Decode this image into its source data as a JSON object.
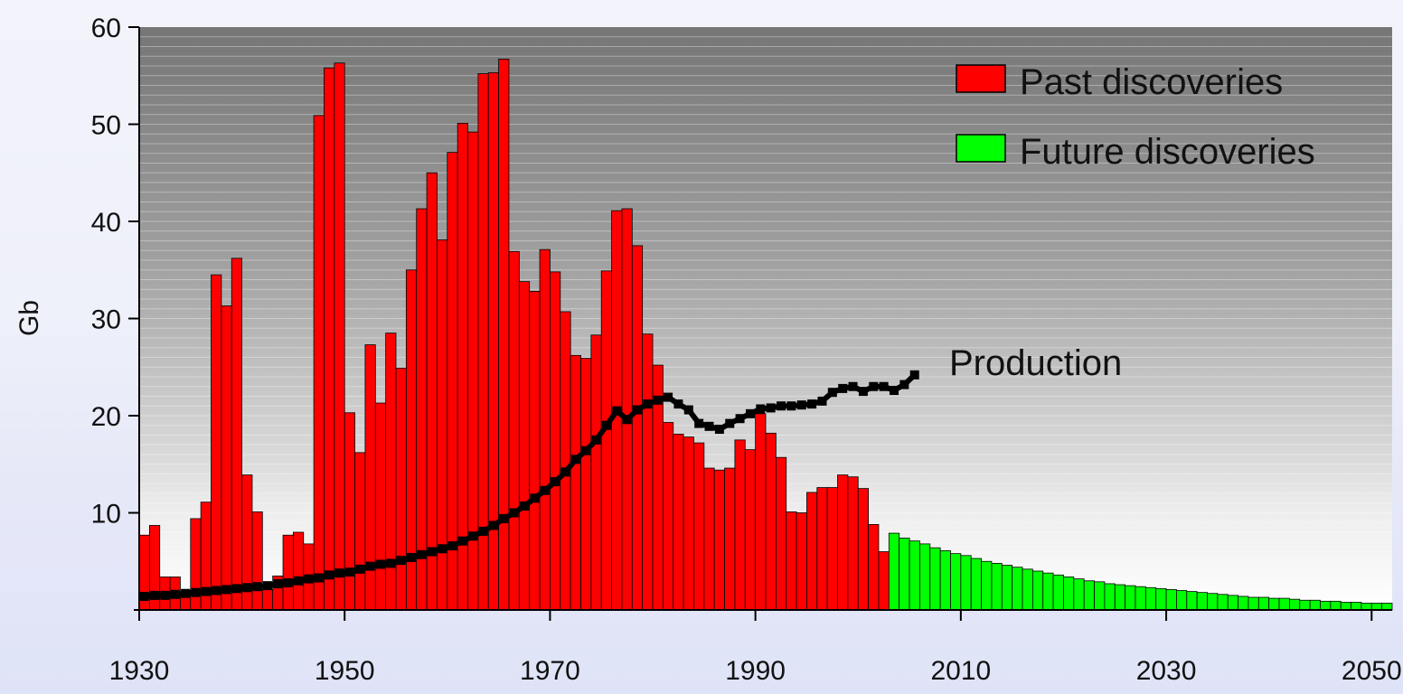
{
  "chart_data": {
    "type": "bar",
    "title": "",
    "xlabel": "",
    "ylabel": "Gb",
    "xlim": [
      1930,
      2052
    ],
    "ylim": [
      0,
      60
    ],
    "x_ticks": [
      1930,
      1950,
      1970,
      1990,
      2010,
      2030,
      2050
    ],
    "y_ticks": [
      10,
      20,
      30,
      40,
      50,
      60
    ],
    "grid": "horizontal lines",
    "legend_position": "top-right",
    "colors": {
      "past": "#ff0000",
      "future": "#00ff00",
      "production": "#000000",
      "plot_background_top": "#7a7a7a",
      "plot_background_bottom": "#ffffff"
    },
    "series": [
      {
        "name": "Past discoveries",
        "type": "bar",
        "x": [
          1930,
          1931,
          1932,
          1933,
          1934,
          1935,
          1936,
          1937,
          1938,
          1939,
          1940,
          1941,
          1942,
          1943,
          1944,
          1945,
          1946,
          1947,
          1948,
          1949,
          1950,
          1951,
          1952,
          1953,
          1954,
          1955,
          1956,
          1957,
          1958,
          1959,
          1960,
          1961,
          1962,
          1963,
          1964,
          1965,
          1966,
          1967,
          1968,
          1969,
          1970,
          1971,
          1972,
          1973,
          1974,
          1975,
          1976,
          1977,
          1978,
          1979,
          1980,
          1981,
          1982,
          1983,
          1984,
          1985,
          1986,
          1987,
          1988,
          1989,
          1990,
          1991,
          1992,
          1993,
          1994,
          1995,
          1996,
          1997,
          1998,
          1999,
          2000,
          2001,
          2002
        ],
        "values": [
          7.7,
          8.7,
          3.4,
          3.4,
          1.5,
          9.4,
          11.1,
          34.5,
          31.3,
          36.2,
          13.9,
          10.1,
          2.1,
          3.5,
          7.7,
          8.0,
          6.8,
          50.9,
          55.8,
          56.3,
          20.3,
          16.2,
          27.3,
          21.3,
          28.5,
          24.9,
          35.0,
          41.3,
          45.0,
          38.1,
          47.1,
          50.1,
          49.2,
          55.2,
          55.3,
          56.7,
          36.9,
          33.8,
          32.8,
          37.1,
          34.8,
          30.7,
          26.2,
          25.9,
          28.3,
          34.9,
          41.1,
          41.3,
          37.5,
          28.4,
          25.2,
          19.3,
          18.1,
          17.8,
          17.2,
          14.6,
          14.4,
          14.6,
          17.5,
          16.5,
          20.2,
          18.2,
          15.7,
          10.1,
          10.0,
          12.1,
          12.6,
          12.6,
          13.9,
          13.7,
          12.5,
          8.8,
          6.0
        ]
      },
      {
        "name": "Future discoveries",
        "type": "bar",
        "x": [
          2003,
          2004,
          2005,
          2006,
          2007,
          2008,
          2009,
          2010,
          2011,
          2012,
          2013,
          2014,
          2015,
          2016,
          2017,
          2018,
          2019,
          2020,
          2021,
          2022,
          2023,
          2024,
          2025,
          2026,
          2027,
          2028,
          2029,
          2030,
          2031,
          2032,
          2033,
          2034,
          2035,
          2036,
          2037,
          2038,
          2039,
          2040,
          2041,
          2042,
          2043,
          2044,
          2045,
          2046,
          2047,
          2048,
          2049,
          2050,
          2051
        ],
        "values": [
          7.9,
          7.4,
          7.1,
          6.8,
          6.4,
          6.1,
          5.8,
          5.6,
          5.3,
          5.0,
          4.8,
          4.6,
          4.4,
          4.2,
          4.0,
          3.8,
          3.6,
          3.4,
          3.2,
          3.0,
          2.9,
          2.7,
          2.6,
          2.5,
          2.4,
          2.3,
          2.2,
          2.1,
          2.0,
          1.9,
          1.8,
          1.7,
          1.6,
          1.5,
          1.4,
          1.3,
          1.3,
          1.2,
          1.2,
          1.1,
          1.0,
          1.0,
          0.9,
          0.9,
          0.8,
          0.8,
          0.7,
          0.7,
          0.7
        ]
      },
      {
        "name": "Production",
        "type": "line",
        "label": "Production",
        "x": [
          1930,
          1931,
          1932,
          1933,
          1934,
          1935,
          1936,
          1937,
          1938,
          1939,
          1940,
          1941,
          1942,
          1943,
          1944,
          1945,
          1946,
          1947,
          1948,
          1949,
          1950,
          1951,
          1952,
          1953,
          1954,
          1955,
          1956,
          1957,
          1958,
          1959,
          1960,
          1961,
          1962,
          1963,
          1964,
          1965,
          1966,
          1967,
          1968,
          1969,
          1970,
          1971,
          1972,
          1973,
          1974,
          1975,
          1976,
          1977,
          1978,
          1979,
          1980,
          1981,
          1982,
          1983,
          1984,
          1985,
          1986,
          1987,
          1988,
          1989,
          1990,
          1991,
          1992,
          1993,
          1994,
          1995,
          1996,
          1997,
          1998,
          1999,
          2000,
          2001,
          2002,
          2003,
          2004,
          2005
        ],
        "values": [
          1.4,
          1.5,
          1.5,
          1.6,
          1.7,
          1.8,
          1.9,
          2.0,
          2.1,
          2.2,
          2.3,
          2.4,
          2.5,
          2.7,
          2.8,
          3.0,
          3.2,
          3.3,
          3.6,
          3.8,
          3.9,
          4.2,
          4.5,
          4.7,
          4.8,
          5.1,
          5.4,
          5.7,
          6.0,
          6.3,
          6.6,
          7.1,
          7.6,
          8.1,
          8.7,
          9.4,
          10.0,
          10.7,
          11.5,
          12.3,
          13.2,
          14.2,
          15.5,
          16.4,
          17.5,
          19.0,
          20.5,
          19.6,
          20.6,
          21.2,
          21.6,
          21.9,
          21.2,
          20.6,
          19.2,
          18.9,
          18.6,
          19.2,
          19.7,
          20.2,
          20.7,
          20.8,
          21.0,
          21.0,
          21.1,
          21.2,
          21.5,
          22.4,
          22.8,
          23.0,
          22.5,
          23.0,
          23.0,
          22.6,
          23.2,
          24.2
        ]
      }
    ]
  }
}
